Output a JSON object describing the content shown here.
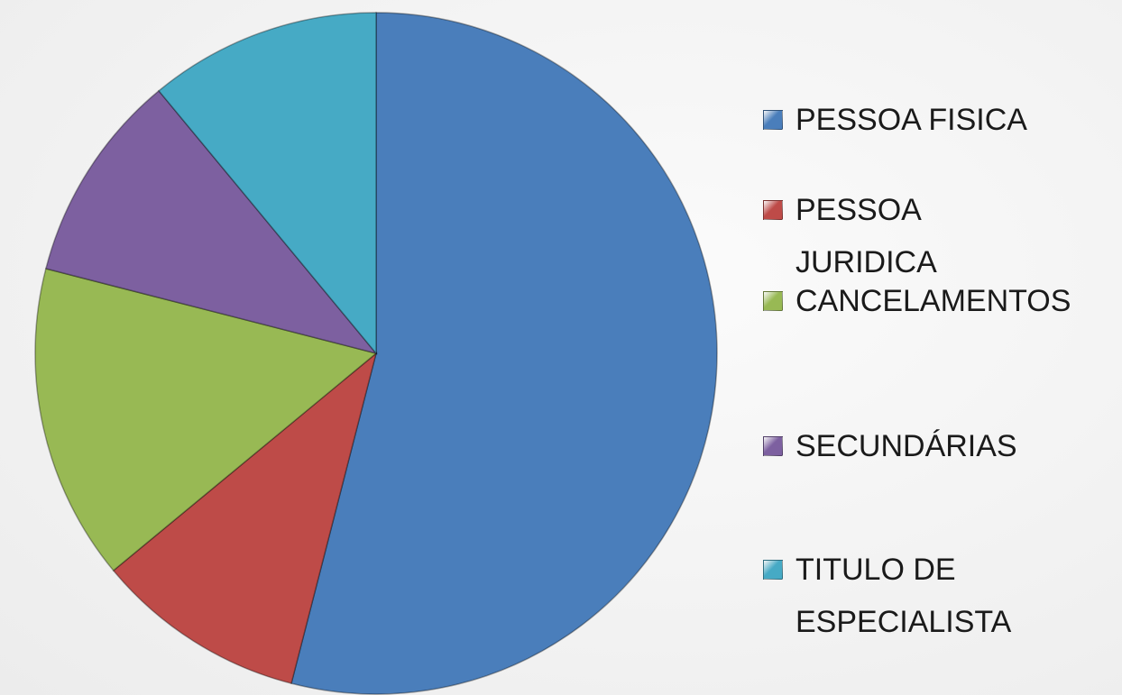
{
  "chart_data": {
    "type": "pie",
    "categories": [
      "PESSOA FISICA",
      "PESSOA JURIDICA",
      "CANCELAMENTOS",
      "SECUNDÁRIAS",
      "TITULO DE ESPECIALISTA"
    ],
    "values": [
      54,
      10,
      15,
      10,
      11
    ],
    "colors": [
      "#4a7ebb",
      "#be4b48",
      "#98b954",
      "#7d60a0",
      "#46aac5"
    ],
    "legend": "right"
  }
}
